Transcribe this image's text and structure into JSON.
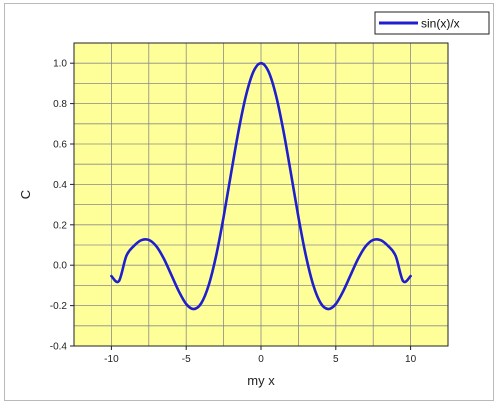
{
  "chart_data": {
    "type": "line",
    "xlabel": "my x",
    "ylabel": "C",
    "xlim": [
      -12.5,
      12.5
    ],
    "ylim": [
      -0.4,
      1.1
    ],
    "xticks": [
      -10,
      -5,
      0,
      5,
      10
    ],
    "xtick_labels": [
      "-10",
      "-5",
      "0",
      "5",
      "10"
    ],
    "yticks": [
      -0.4,
      -0.2,
      0.0,
      0.2,
      0.4,
      0.6,
      0.8,
      1.0
    ],
    "ytick_labels": [
      "-0.4",
      "-0.2",
      "0.0",
      "0.2",
      "0.4",
      "0.6",
      "0.8",
      "1.0"
    ],
    "grid": true,
    "legend_position": "top-right",
    "background_color": "#ffff99",
    "grid_color": "#8a8a8a",
    "series": [
      {
        "name": "sin(x)/x",
        "color": "#1f1fd0",
        "x": [
          -10,
          -9.5,
          -9,
          -8.5,
          -8,
          -7.5,
          -7,
          -6.5,
          -6,
          -5.5,
          -5,
          -4.5,
          -4,
          -3.5,
          -3,
          -2.5,
          -2,
          -1.5,
          -1,
          -0.5,
          0,
          0.5,
          1,
          1.5,
          2,
          2.5,
          3,
          3.5,
          4,
          4.5,
          5,
          5.5,
          6,
          6.5,
          7,
          7.5,
          8,
          8.5,
          9,
          9.5,
          10
        ],
        "y": [
          -0.054,
          -0.079,
          0.046,
          0.095,
          0.124,
          0.125,
          0.094,
          0.033,
          -0.047,
          -0.128,
          -0.192,
          -0.217,
          -0.189,
          -0.1,
          0.047,
          0.239,
          0.455,
          0.665,
          0.841,
          0.959,
          1.0,
          0.959,
          0.841,
          0.665,
          0.455,
          0.239,
          0.047,
          -0.1,
          -0.189,
          -0.217,
          -0.192,
          -0.128,
          -0.047,
          0.033,
          0.094,
          0.125,
          0.124,
          0.095,
          0.046,
          -0.079,
          -0.054
        ]
      }
    ]
  }
}
